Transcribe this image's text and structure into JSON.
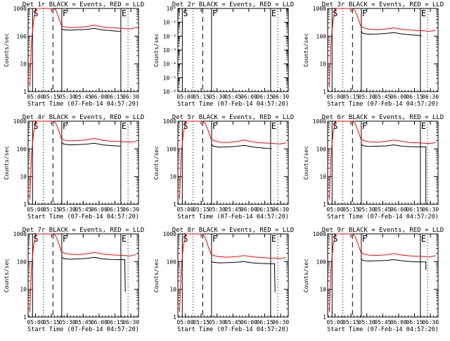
{
  "page": {
    "x_axis_label": "Start Time (07-Feb-14 04:57:20)",
    "y_axis_label": "Counts/sec"
  },
  "x_ticks": [
    "05:00",
    "05:15",
    "05:30",
    "05:45",
    "06:00",
    "06:15",
    "06:30"
  ],
  "colors": {
    "events": "#000000",
    "lld": "#ff0000"
  },
  "chart_data": [
    {
      "type": "line",
      "title": "Det 1r BLACK = Events, RED = LLD",
      "ylabel": "Counts/sec",
      "xlabel": "Start Time (07-Feb-14 04:57:20)",
      "y_ticks": [
        "1",
        "10",
        "100",
        "1000"
      ],
      "ylim": [
        1,
        1000
      ],
      "log_y": true,
      "xlim": [
        0,
        40
      ],
      "markers": {
        "S": 1.6,
        "F": 12.2,
        "E": 33.6
      },
      "dotted": [
        5.5,
        36.2
      ],
      "dashed": [
        9
      ],
      "series": [
        {
          "key": "events",
          "x": [
            12.2,
            12.8,
            15,
            18,
            21,
            24,
            27,
            30,
            32,
            33.6
          ],
          "values": [
            190,
            170,
            165,
            170,
            175,
            190,
            168,
            158,
            152,
            150
          ]
        },
        {
          "key": "lld",
          "x": [
            0.6,
            1.2,
            2,
            3,
            4,
            5,
            6,
            7,
            8,
            9,
            10,
            11,
            12,
            13,
            15,
            18,
            21,
            24,
            27,
            30,
            33,
            35,
            36,
            38,
            39.2
          ],
          "values": [
            1.5,
            60,
            400,
            1000,
            1000,
            1000,
            1000,
            1000,
            1000,
            1000,
            900,
            500,
            250,
            220,
            205,
            210,
            220,
            250,
            215,
            200,
            195,
            190,
            180,
            190,
            215
          ]
        }
      ]
    },
    {
      "type": "line",
      "title": "Det 2r BLACK = Events, RED = LLD",
      "ylabel": "Counts/sec",
      "xlabel": "Start Time (07-Feb-14 04:57:20)",
      "y_ticks": [
        "10⁻⁶",
        "10⁻⁵",
        "10⁻⁴",
        "10⁻³",
        "10⁻²",
        "10⁻¹",
        "10⁰"
      ],
      "ylim": [
        1e-06,
        1
      ],
      "log_y": true,
      "xlim": [
        0,
        40
      ],
      "markers": {
        "S": 1.6,
        "F": 12.2,
        "E": 33.6
      },
      "dotted": [
        5.5,
        36.2
      ],
      "dashed": [
        9
      ],
      "series": []
    },
    {
      "type": "line",
      "title": "Det 3r BLACK = Events, RED = LLD",
      "ylabel": "Counts/sec",
      "xlabel": "Start Time (07-Feb-14 04:57:20)",
      "y_ticks": [
        "1",
        "10",
        "100",
        "1000"
      ],
      "ylim": [
        1,
        1000
      ],
      "log_y": true,
      "xlim": [
        0,
        40
      ],
      "markers": {
        "S": 1.6,
        "F": 12.2,
        "E": 33.6
      },
      "dotted": [
        5.5,
        36.2
      ],
      "dashed": [
        9
      ],
      "series": [
        {
          "key": "events",
          "x": [
            12.2,
            12.8,
            15,
            18,
            21,
            24,
            27,
            30,
            32,
            33.6,
            34
          ],
          "values": [
            150,
            125,
            118,
            120,
            125,
            135,
            120,
            112,
            108,
            105,
            100
          ]
        },
        {
          "key": "lld",
          "x": [
            0.6,
            1.2,
            2,
            3,
            4,
            5,
            6,
            7,
            8,
            9,
            10,
            11,
            12,
            13,
            15,
            18,
            21,
            24,
            27,
            30,
            33,
            35,
            37,
            39.2
          ],
          "values": [
            1.5,
            60,
            400,
            1000,
            1000,
            1000,
            1000,
            1000,
            1000,
            1000,
            800,
            450,
            230,
            200,
            180,
            170,
            180,
            200,
            175,
            165,
            160,
            155,
            150,
            160
          ]
        }
      ]
    },
    {
      "type": "line",
      "title": "Det 4r BLACK = Events, RED = LLD",
      "ylabel": "Counts/sec",
      "xlabel": "Start Time (07-Feb-14 04:57:20)",
      "y_ticks": [
        "1",
        "10",
        "100",
        "1000"
      ],
      "ylim": [
        1,
        1000
      ],
      "log_y": true,
      "xlim": [
        0,
        40
      ],
      "markers": {
        "S": 1.6,
        "F": 12.2,
        "E": 33.6
      },
      "dotted": [
        5.5,
        36.2
      ],
      "dashed": [
        9
      ],
      "series": [
        {
          "key": "events",
          "x": [
            12.2,
            12.8,
            15,
            18,
            21,
            24,
            27,
            30,
            32,
            33.6
          ],
          "values": [
            175,
            150,
            140,
            142,
            148,
            160,
            140,
            132,
            128,
            125
          ]
        },
        {
          "key": "lld",
          "x": [
            0.6,
            1.2,
            2,
            3,
            4,
            5,
            6,
            7,
            8,
            9,
            10,
            11,
            12,
            13,
            15,
            18,
            21,
            24,
            27,
            30,
            33,
            35,
            37,
            39.2
          ],
          "values": [
            1.5,
            60,
            400,
            1000,
            1000,
            1000,
            1000,
            1000,
            1000,
            1000,
            850,
            500,
            240,
            210,
            195,
            200,
            210,
            240,
            205,
            190,
            185,
            180,
            175,
            185
          ]
        }
      ]
    },
    {
      "type": "line",
      "title": "Det 5r BLACK = Events, RED = LLD",
      "ylabel": "Counts/sec",
      "xlabel": "Start Time (07-Feb-14 04:57:20)",
      "y_ticks": [
        "1",
        "10",
        "100",
        "1000"
      ],
      "ylim": [
        1,
        1000
      ],
      "log_y": true,
      "xlim": [
        0,
        40
      ],
      "markers": {
        "S": 1.6,
        "F": 12.2,
        "E": 33.6
      },
      "dotted": [
        5.5,
        36.2
      ],
      "dashed": [
        9
      ],
      "series": [
        {
          "key": "events",
          "x": [
            12.2,
            12.8,
            15,
            18,
            21,
            24,
            27,
            30,
            32,
            33.6,
            34
          ],
          "values": [
            150,
            125,
            115,
            118,
            122,
            135,
            118,
            110,
            105,
            103,
            100
          ]
        },
        {
          "key": "lld",
          "x": [
            0.6,
            1.2,
            2,
            3,
            4,
            5,
            6,
            7,
            8,
            9,
            10,
            11,
            12,
            13,
            15,
            18,
            21,
            24,
            27,
            30,
            33,
            35,
            37,
            39.2
          ],
          "values": [
            1.5,
            60,
            400,
            1000,
            1000,
            1000,
            1000,
            1000,
            1000,
            1000,
            800,
            450,
            230,
            200,
            175,
            170,
            180,
            210,
            180,
            165,
            160,
            155,
            150,
            165
          ]
        }
      ]
    },
    {
      "type": "line",
      "title": "Det 6r BLACK = Events, RED = LLD",
      "ylabel": "Counts/sec",
      "xlabel": "Start Time (07-Feb-14 04:57:20)",
      "y_ticks": [
        "1",
        "10",
        "100",
        "1000"
      ],
      "ylim": [
        1,
        1000
      ],
      "log_y": true,
      "xlim": [
        0,
        40
      ],
      "markers": {
        "S": 1.6,
        "F": 12.2,
        "E": 33.6
      },
      "dotted": [
        5.5,
        36.2
      ],
      "dashed": [
        9
      ],
      "series": [
        {
          "key": "events",
          "x": [
            12.2,
            12.8,
            15,
            18,
            21,
            24,
            27,
            30,
            33,
            35,
            35.6,
            35.6
          ],
          "values": [
            150,
            130,
            122,
            125,
            128,
            140,
            125,
            120,
            118,
            118,
            118,
            1
          ]
        },
        {
          "key": "lld",
          "x": [
            0.6,
            1.2,
            2,
            3,
            4,
            5,
            6,
            7,
            8,
            9,
            10,
            11,
            12,
            13,
            15,
            18,
            21,
            24,
            27,
            30,
            33,
            35,
            37,
            39.2
          ],
          "values": [
            1.5,
            60,
            400,
            1000,
            1000,
            1000,
            1000,
            1000,
            1000,
            1000,
            800,
            450,
            230,
            200,
            180,
            175,
            185,
            210,
            185,
            170,
            165,
            160,
            155,
            170
          ]
        }
      ]
    },
    {
      "type": "line",
      "title": "Det 7r BLACK = Events, RED = LLD",
      "ylabel": "Counts/sec",
      "xlabel": "Start Time (07-Feb-14 04:57:20)",
      "y_ticks": [
        "1",
        "10",
        "100",
        "1000"
      ],
      "ylim": [
        1,
        1000
      ],
      "log_y": true,
      "xlim": [
        0,
        40
      ],
      "markers": {
        "S": 1.6,
        "F": 12.2,
        "E": 33.6
      },
      "dotted": [
        5.5,
        36.2
      ],
      "dashed": [
        9
      ],
      "series": [
        {
          "key": "events",
          "x": [
            12.2,
            12.8,
            15,
            18,
            21,
            24,
            27,
            30,
            33,
            34.6,
            35,
            35.2
          ],
          "values": [
            150,
            128,
            122,
            125,
            130,
            142,
            125,
            120,
            118,
            118,
            118,
            8
          ]
        },
        {
          "key": "lld",
          "x": [
            0.6,
            1.2,
            2,
            3,
            4,
            5,
            6,
            7,
            8,
            9,
            10,
            11,
            12,
            13,
            15,
            18,
            21,
            24,
            27,
            30,
            33,
            35,
            37,
            39.2
          ],
          "values": [
            1.5,
            60,
            400,
            1000,
            1000,
            1000,
            1000,
            1000,
            1000,
            1000,
            850,
            480,
            240,
            205,
            185,
            180,
            190,
            215,
            190,
            175,
            170,
            165,
            160,
            180
          ]
        }
      ]
    },
    {
      "type": "line",
      "title": "Det 8r BLACK = Events, RED = LLD",
      "ylabel": "Counts/sec",
      "xlabel": "Start Time (07-Feb-14 04:57:20)",
      "y_ticks": [
        "1",
        "10",
        "100",
        "1000"
      ],
      "ylim": [
        1,
        1000
      ],
      "log_y": true,
      "xlim": [
        0,
        40
      ],
      "markers": {
        "S": 1.6,
        "F": 12.2,
        "E": 33.6
      },
      "dotted": [
        5.5,
        36.2
      ],
      "dashed": [
        9
      ],
      "series": [
        {
          "key": "events",
          "x": [
            12.2,
            12.8,
            15,
            18,
            21,
            24,
            27,
            30,
            33,
            34.6,
            35,
            35.2
          ],
          "values": [
            100,
            95,
            90,
            92,
            95,
            100,
            90,
            86,
            84,
            84,
            84,
            8
          ]
        },
        {
          "key": "lld",
          "x": [
            0.6,
            1.2,
            2,
            3,
            4,
            5,
            6,
            7,
            8,
            9,
            10,
            11,
            12,
            13,
            15,
            18,
            21,
            24,
            27,
            30,
            33,
            35,
            37,
            39.2
          ],
          "values": [
            1.5,
            60,
            400,
            1000,
            1000,
            1000,
            1000,
            1000,
            1000,
            1000,
            700,
            350,
            190,
            165,
            150,
            145,
            150,
            165,
            150,
            140,
            135,
            135,
            130,
            140
          ]
        }
      ]
    },
    {
      "type": "line",
      "title": "Det 9r BLACK = Events, RED = LLD",
      "ylabel": "Counts/sec",
      "xlabel": "Start Time (07-Feb-14 04:57:20)",
      "y_ticks": [
        "1",
        "10",
        "100",
        "1000"
      ],
      "ylim": [
        1,
        1000
      ],
      "log_y": true,
      "xlim": [
        0,
        40
      ],
      "markers": {
        "S": 1.6,
        "F": 12.2,
        "E": 33.6
      },
      "dotted": [
        5.5,
        36.2
      ],
      "dashed": [
        9
      ],
      "series": [
        {
          "key": "events",
          "x": [
            12.2,
            12.8,
            15,
            18,
            21,
            24,
            27,
            30,
            33,
            35,
            35.6,
            35.6
          ],
          "values": [
            125,
            110,
            105,
            108,
            110,
            118,
            106,
            100,
            98,
            98,
            98,
            50
          ]
        },
        {
          "key": "lld",
          "x": [
            0.6,
            1.2,
            2,
            3,
            4,
            5,
            6,
            7,
            8,
            9,
            10,
            11,
            12,
            13,
            15,
            18,
            21,
            24,
            27,
            30,
            33,
            35,
            37,
            39.2
          ],
          "values": [
            1.5,
            60,
            400,
            1000,
            1000,
            1000,
            1000,
            1000,
            1000,
            1000,
            800,
            430,
            220,
            190,
            170,
            168,
            175,
            195,
            172,
            160,
            155,
            152,
            148,
            165
          ]
        }
      ]
    }
  ]
}
